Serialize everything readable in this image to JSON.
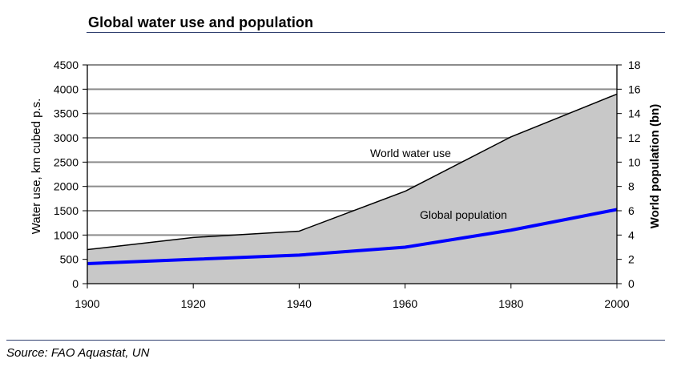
{
  "header": {
    "title": "Global water use and population"
  },
  "footer": {
    "source": "Source: FAO Aquastat, UN"
  },
  "chart_data": {
    "type": "area",
    "x": [
      1900,
      1920,
      1940,
      1960,
      1980,
      2000
    ],
    "xlim": [
      1900,
      2000
    ],
    "x_ticks": [
      "1900",
      "1920",
      "1940",
      "1960",
      "1980",
      "2000"
    ],
    "ylabel": "Water use, km cubed p.s.",
    "ylim": [
      0,
      4500
    ],
    "y_ticks": [
      "0",
      "500",
      "1000",
      "1500",
      "2000",
      "2500",
      "3000",
      "3500",
      "4000",
      "4500"
    ],
    "y2label": "World population (bn)",
    "y2lim": [
      0,
      18
    ],
    "y2_ticks": [
      "0",
      "2",
      "4",
      "6",
      "8",
      "10",
      "12",
      "14",
      "16",
      "18"
    ],
    "grid": true,
    "legend": "none",
    "series": [
      {
        "type": "area",
        "axis": "left",
        "values": [
          700,
          950,
          1080,
          1900,
          3020,
          3900
        ],
        "fill_color": "#c8c8c8",
        "line_color": "#000000",
        "label": "World water use"
      },
      {
        "type": "line",
        "axis": "right",
        "values": [
          1.65,
          2.0,
          2.35,
          3.0,
          4.4,
          6.1
        ],
        "line_color": "#0000ff",
        "label": "Global population"
      }
    ]
  }
}
